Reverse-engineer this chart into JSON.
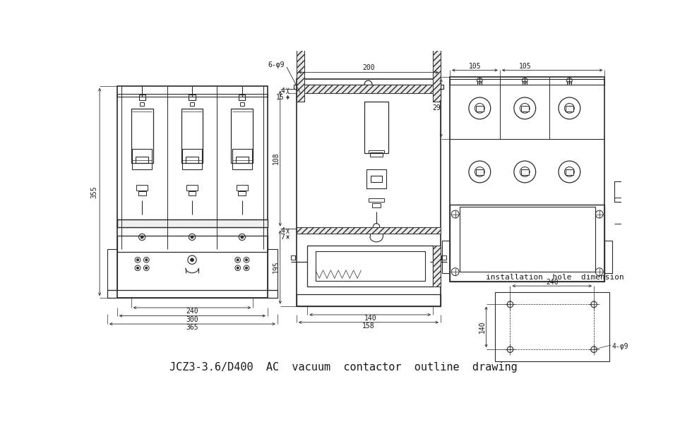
{
  "title": "JCZ3-3.6/D400  AC  vacuum  contactor  outline  drawing",
  "title_fontsize": 11,
  "bg_color": "#ffffff",
  "lc": "#2a2a2a",
  "dc": "#2a2a2a",
  "tc": "#1a1a1a",
  "fig_w": 9.8,
  "fig_h": 5.98,
  "install_label": "installation  hole  dimension"
}
